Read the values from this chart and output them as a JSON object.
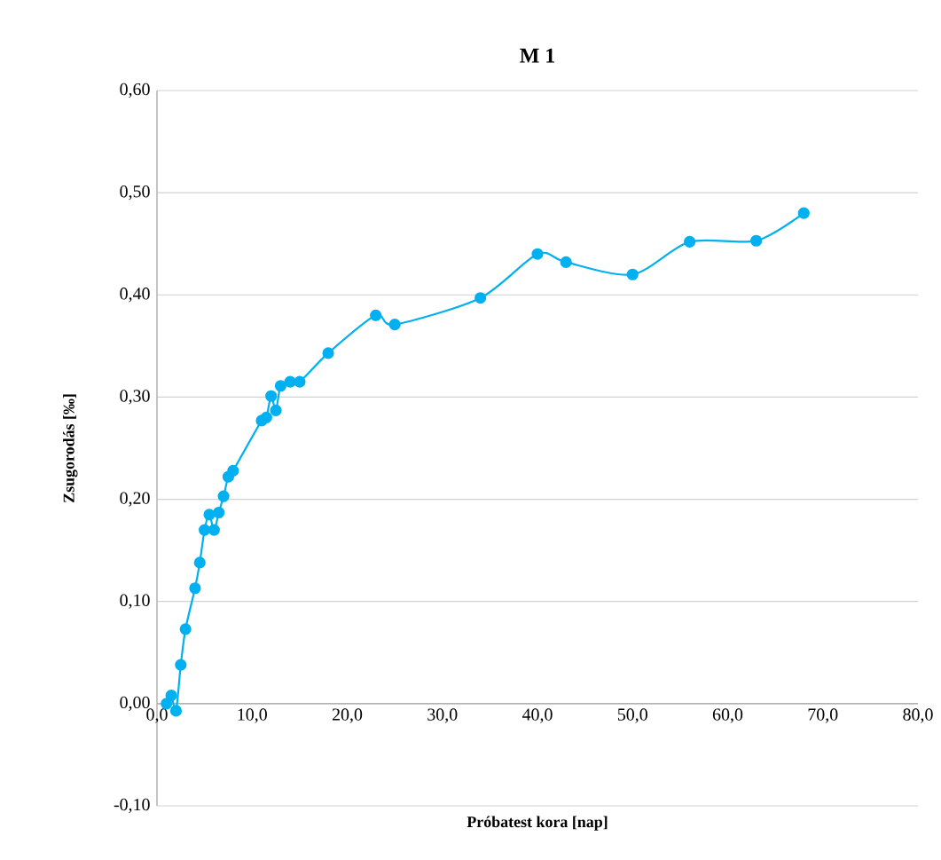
{
  "chart_data": {
    "type": "line",
    "title": "M 1",
    "xlabel": "Próbatest kora [nap]",
    "ylabel": "Zsugorodás [‰]",
    "x": [
      1,
      1.5,
      2,
      2.5,
      3,
      4,
      4.5,
      5,
      5.5,
      6,
      6.5,
      7,
      7.5,
      8,
      11,
      11.5,
      12,
      12.5,
      13,
      14,
      15,
      18,
      23,
      25,
      34,
      40,
      43,
      50,
      56,
      63,
      68
    ],
    "series": [
      {
        "color": "#00b0f0",
        "values": [
          0.0,
          0.008,
          -0.007,
          0.038,
          0.073,
          0.113,
          0.138,
          0.17,
          0.185,
          0.17,
          0.187,
          0.203,
          0.222,
          0.228,
          0.277,
          0.28,
          0.301,
          0.287,
          0.311,
          0.315,
          0.315,
          0.343,
          0.38,
          0.371,
          0.397,
          0.44,
          0.432,
          0.42,
          0.452,
          0.453,
          0.48
        ]
      }
    ],
    "xlim": [
      0,
      80
    ],
    "ylim": [
      -0.1,
      0.6
    ],
    "xticks": [
      {
        "value": 0,
        "label": "0,0"
      },
      {
        "value": 10,
        "label": "10,0"
      },
      {
        "value": 20,
        "label": "20,0"
      },
      {
        "value": 30,
        "label": "30,0"
      },
      {
        "value": 40,
        "label": "40,0"
      },
      {
        "value": 50,
        "label": "50,0"
      },
      {
        "value": 60,
        "label": "60,0"
      },
      {
        "value": 70,
        "label": "70,0"
      },
      {
        "value": 80,
        "label": "80,0"
      }
    ],
    "yticks": [
      {
        "value": -0.1,
        "label": "-0,10"
      },
      {
        "value": 0,
        "label": "0,00"
      },
      {
        "value": 0.1,
        "label": "0,10"
      },
      {
        "value": 0.2,
        "label": "0,20"
      },
      {
        "value": 0.3,
        "label": "0,30"
      },
      {
        "value": 0.4,
        "label": "0,40"
      },
      {
        "value": 0.5,
        "label": "0,50"
      },
      {
        "value": 0.6,
        "label": "0,60"
      }
    ],
    "grid": "y",
    "marker": "circle"
  }
}
